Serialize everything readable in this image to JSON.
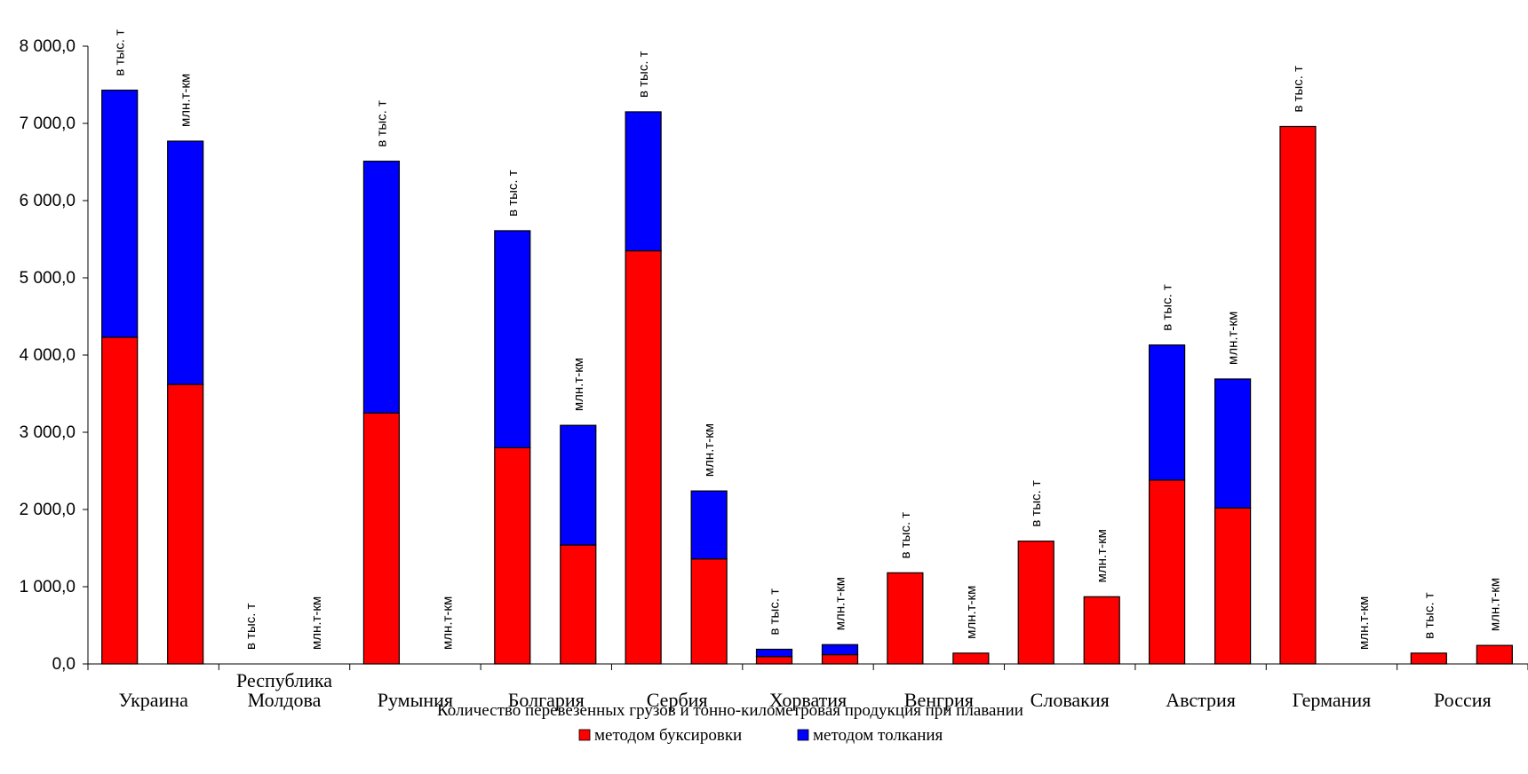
{
  "chart_data": {
    "type": "bar",
    "stacked": true,
    "title": "",
    "xlabel": "Количество перевезенных грузов и тонно-километровая продукция при плавании",
    "ylabel": "",
    "ylim": [
      0,
      8000
    ],
    "yticks": [
      0,
      1000,
      2000,
      3000,
      4000,
      5000,
      6000,
      7000,
      8000
    ],
    "ytick_labels": [
      "0,0",
      "1 000,0",
      "2 000,0",
      "3 000,0",
      "4 000,0",
      "5 000,0",
      "6 000,0",
      "7 000,0",
      "8 000,0"
    ],
    "grid": false,
    "legend_position": "bottom",
    "groups": [
      {
        "name": "Украина",
        "name_lines": [
          "Украина"
        ]
      },
      {
        "name": "Республика Молдова",
        "name_lines": [
          "Республика",
          "Молдова"
        ]
      },
      {
        "name": "Румыния",
        "name_lines": [
          "Румыния"
        ]
      },
      {
        "name": "Болгария",
        "name_lines": [
          "Болгария"
        ]
      },
      {
        "name": "Сербия",
        "name_lines": [
          "Сербия"
        ]
      },
      {
        "name": "Хорватия",
        "name_lines": [
          "Хорватия"
        ]
      },
      {
        "name": "Венгрия",
        "name_lines": [
          "Венгрия"
        ]
      },
      {
        "name": "Словакия",
        "name_lines": [
          "Словакия"
        ]
      },
      {
        "name": "Австрия",
        "name_lines": [
          "Австрия"
        ]
      },
      {
        "name": "Германия",
        "name_lines": [
          "Германия"
        ]
      },
      {
        "name": "Россия",
        "name_lines": [
          "Россия"
        ]
      }
    ],
    "bar_units": [
      "в тыс. т",
      "млн.т-км"
    ],
    "series": [
      {
        "name": "методом буксировки",
        "color": "#ff0000",
        "values": [
          [
            4230,
            3620
          ],
          [
            0,
            0
          ],
          [
            3250,
            0
          ],
          [
            2800,
            1540
          ],
          [
            5350,
            1360
          ],
          [
            95,
            120
          ],
          [
            1180,
            140
          ],
          [
            1590,
            870
          ],
          [
            2380,
            2020
          ],
          [
            6960,
            0
          ],
          [
            140,
            240
          ]
        ]
      },
      {
        "name": "методом толкания",
        "color": "#0000ff",
        "values": [
          [
            3200,
            3150
          ],
          [
            0,
            0
          ],
          [
            3260,
            0
          ],
          [
            2810,
            1550
          ],
          [
            1800,
            880
          ],
          [
            95,
            130
          ],
          [
            0,
            0
          ],
          [
            0,
            0
          ],
          [
            1750,
            1670
          ],
          [
            0,
            0
          ],
          [
            0,
            0
          ]
        ]
      }
    ]
  }
}
